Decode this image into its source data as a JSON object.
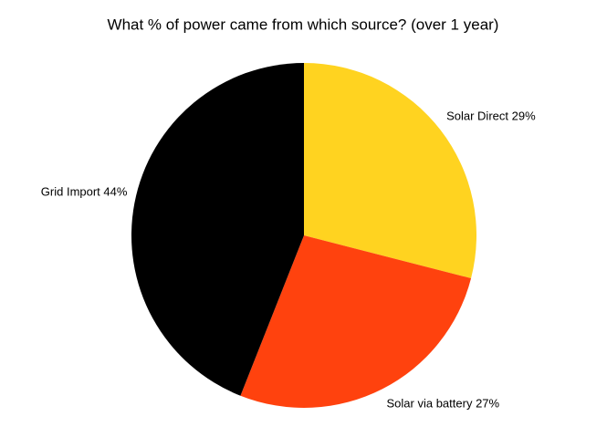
{
  "chart_data": {
    "type": "pie",
    "title": "What % of power came from which source? (over 1 year)",
    "categories": [
      "Solar Direct",
      "Solar via battery",
      "Grid Import"
    ],
    "values": [
      29,
      27,
      44
    ],
    "value_labels": [
      "29%",
      "27%",
      "44%"
    ],
    "colors": [
      "#ffd320",
      "#ff420e",
      "#000000"
    ]
  }
}
